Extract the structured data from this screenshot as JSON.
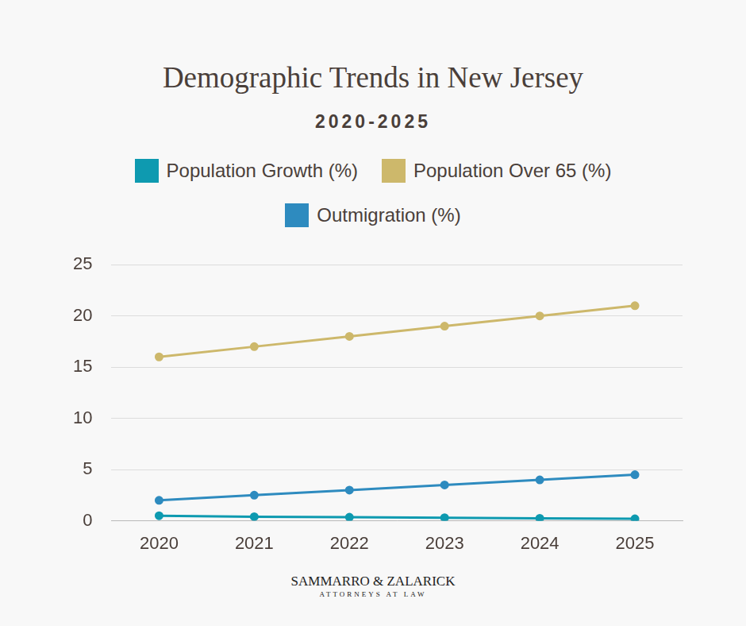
{
  "chart_data": {
    "type": "line",
    "title": "Demographic Trends in New Jersey",
    "subtitle": "2020-2025",
    "annotations": [
      "SAMMARRO & ZALARICK",
      "ATTORNEYS AT LAW"
    ],
    "categories": [
      "2020",
      "2021",
      "2022",
      "2023",
      "2024",
      "2025"
    ],
    "series": [
      {
        "name": "Population Growth (%)",
        "color": "#0e9ab0",
        "marker": "circle",
        "line_style": "solid",
        "values": [
          0.5,
          0.4,
          0.35,
          0.3,
          0.25,
          0.2
        ]
      },
      {
        "name": "Population Over 65 (%)",
        "color": "#cdb86b",
        "marker": "circle",
        "line_style": "solid",
        "values": [
          16,
          17,
          18,
          19,
          20,
          21
        ]
      },
      {
        "name": "Outmigration (%)",
        "color": "#2e8bbf",
        "marker": "circle",
        "line_style": "solid",
        "values": [
          2,
          2.5,
          3,
          3.5,
          4,
          4.5
        ]
      }
    ],
    "ylim": [
      0,
      25
    ],
    "yticks": [
      0,
      5,
      10,
      15,
      20,
      25
    ],
    "grid": true,
    "legend": "top"
  }
}
